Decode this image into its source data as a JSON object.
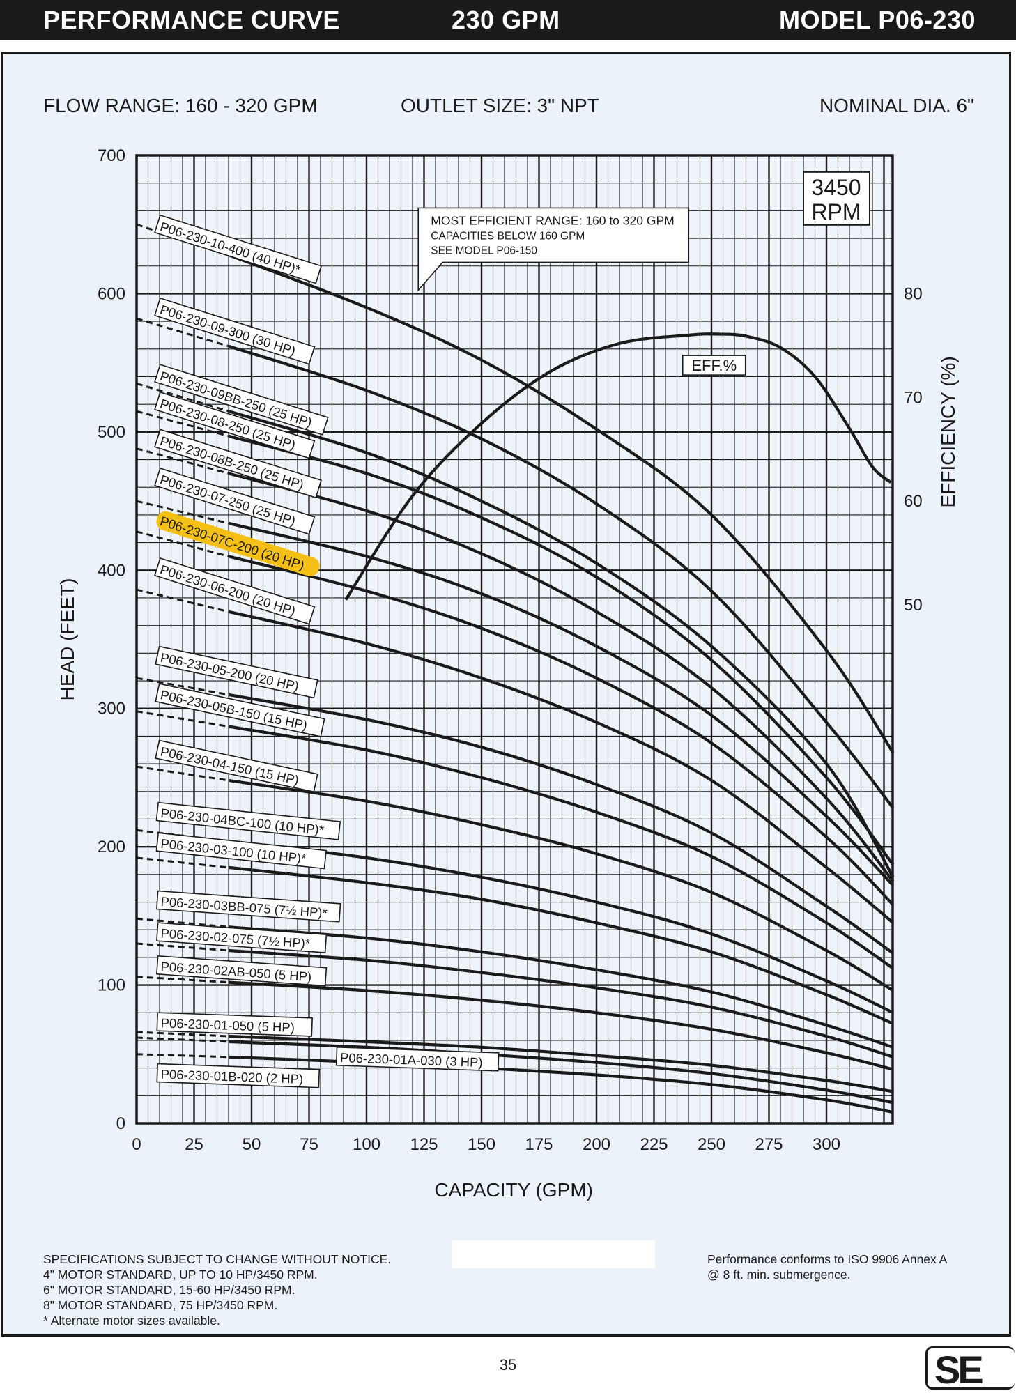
{
  "header": {
    "left": "PERFORMANCE CURVE",
    "middle": "230 GPM",
    "right": "MODEL  P06-230"
  },
  "specs": {
    "flow_range": "FLOW RANGE: 160 - 320 GPM",
    "outlet": "OUTLET SIZE: 3\" NPT",
    "nominal_dia": "NOMINAL DIA. 6\""
  },
  "chart_data": {
    "type": "line",
    "xlabel": "CAPACITY (GPM)",
    "ylabel": "HEAD (FEET)",
    "y2label": "EFFICIENCY (%)",
    "xlim": [
      0,
      329
    ],
    "ylim": [
      0,
      700
    ],
    "y2lim": [
      0,
      93.3
    ],
    "xticks": [
      0,
      25,
      50,
      75,
      100,
      125,
      150,
      175,
      200,
      225,
      250,
      275,
      300
    ],
    "yticks": [
      0,
      100,
      200,
      300,
      400,
      500,
      600,
      700
    ],
    "y2ticks": [
      50,
      60,
      70,
      80
    ],
    "grid": true,
    "rpm_box": [
      "3450",
      "RPM"
    ],
    "callout": [
      "MOST EFFICIENT RANGE: 160 to 320 GPM",
      "CAPACITIES BELOW 160 GPM",
      "SEE  MODEL P06-150"
    ],
    "efficiency": {
      "name": "EFF.%",
      "x": [
        91,
        120,
        150,
        180,
        210,
        240,
        253,
        265,
        280,
        295,
        310,
        320,
        328
      ],
      "y": [
        50.5,
        60.5,
        67.5,
        72.5,
        75.2,
        76,
        76.1,
        75.9,
        74.8,
        72,
        67,
        63.3,
        61.8
      ]
    },
    "highlight_color": "#f5c016",
    "series": [
      {
        "name": "P06-230-10-400 (40 HP)*",
        "label_x": 9,
        "label_y": 650,
        "label_angle": 17.5,
        "x": [
          0,
          40,
          100,
          150,
          200,
          250,
          300,
          329
        ],
        "y": [
          650,
          628,
          590,
          552,
          502,
          440,
          342,
          268
        ]
      },
      {
        "name": "P06-230-09-300 (30 HP)",
        "label_x": 9,
        "label_y": 590,
        "label_angle": 17.5,
        "x": [
          0,
          40,
          100,
          150,
          200,
          250,
          300,
          329
        ],
        "y": [
          582,
          562,
          530,
          495,
          448,
          385,
          290,
          228
        ]
      },
      {
        "name": "P06-230-09BB-250 (25 HP)",
        "label_x": 9,
        "label_y": 542,
        "label_angle": 17.5,
        "x": [
          0,
          40,
          100,
          150,
          200,
          250,
          300,
          329
        ],
        "y": [
          535,
          515,
          485,
          450,
          405,
          345,
          260,
          178
        ]
      },
      {
        "name": "P06-230-08-250 (25 HP)",
        "label_x": 9,
        "label_y": 522,
        "label_angle": 17.5,
        "x": [
          0,
          40,
          100,
          150,
          200,
          250,
          300,
          329
        ],
        "y": [
          515,
          497,
          470,
          438,
          395,
          335,
          250,
          187
        ]
      },
      {
        "name": "P06-230-08B-250 (25 HP)",
        "label_x": 9,
        "label_y": 495,
        "label_angle": 17.5,
        "x": [
          0,
          40,
          100,
          150,
          200,
          250,
          300,
          329
        ],
        "y": [
          488,
          470,
          443,
          412,
          370,
          315,
          235,
          175
        ]
      },
      {
        "name": "P06-230-07-250 (25 HP)",
        "label_x": 9,
        "label_y": 467,
        "label_angle": 17.5,
        "x": [
          0,
          40,
          100,
          150,
          200,
          250,
          300,
          329
        ],
        "y": [
          450,
          434,
          410,
          383,
          345,
          295,
          222,
          172
        ]
      },
      {
        "name": "P06-230-07C-200 (20 HP)",
        "label_x": 9,
        "label_y": 437,
        "label_angle": 17.5,
        "highlight": true,
        "x": [
          0,
          40,
          100,
          150,
          200,
          250,
          300,
          329
        ],
        "y": [
          428,
          410,
          385,
          358,
          322,
          275,
          207,
          158
        ]
      },
      {
        "name": "P06-230-06-200 (20 HP)",
        "label_x": 9,
        "label_y": 402,
        "label_angle": 17.5,
        "x": [
          0,
          40,
          100,
          150,
          200,
          250,
          300,
          329
        ],
        "y": [
          386,
          370,
          347,
          322,
          290,
          248,
          185,
          145
        ]
      },
      {
        "name": "P06-230-05-200 (20 HP)",
        "label_x": 9,
        "label_y": 338,
        "label_angle": 12,
        "x": [
          0,
          40,
          100,
          150,
          200,
          250,
          300,
          329
        ],
        "y": [
          322,
          310,
          292,
          272,
          245,
          210,
          157,
          123
        ]
      },
      {
        "name": "P06-230-05B-150 (15 HP)",
        "label_x": 9,
        "label_y": 311,
        "label_angle": 12,
        "x": [
          0,
          40,
          100,
          150,
          200,
          250,
          300,
          329
        ],
        "y": [
          298,
          287,
          270,
          250,
          225,
          193,
          145,
          112
        ]
      },
      {
        "name": "P06-230-04-150 (15 HP)",
        "label_x": 9,
        "label_y": 270,
        "label_angle": 12,
        "x": [
          0,
          40,
          100,
          150,
          200,
          250,
          300,
          329
        ],
        "y": [
          258,
          248,
          233,
          216,
          195,
          167,
          125,
          96
        ]
      },
      {
        "name": "P06-230-04BC-100 (10 HP)*",
        "label_x": 9,
        "label_y": 225,
        "label_angle": 6,
        "x": [
          0,
          40,
          100,
          150,
          200,
          250,
          300,
          329
        ],
        "y": [
          212,
          204,
          192,
          178,
          160,
          137,
          103,
          80
        ]
      },
      {
        "name": "P06-230-03-100 (10 HP)*",
        "label_x": 9,
        "label_y": 203,
        "label_angle": 6,
        "x": [
          0,
          40,
          100,
          150,
          200,
          250,
          300,
          329
        ],
        "y": [
          192,
          185,
          174,
          162,
          145,
          124,
          93,
          72
        ]
      },
      {
        "name": "P06-230-03BB-075 (7½ HP)*",
        "label_x": 9,
        "label_y": 161,
        "label_angle": 4,
        "x": [
          0,
          40,
          100,
          150,
          200,
          250,
          300,
          329
        ],
        "y": [
          148,
          142,
          134,
          124,
          111,
          95,
          71,
          55
        ]
      },
      {
        "name": "P06-230-02-075 (7½ HP)*",
        "label_x": 9,
        "label_y": 138,
        "label_angle": 4,
        "x": [
          0,
          40,
          100,
          150,
          200,
          250,
          300,
          329
        ],
        "y": [
          130,
          125,
          118,
          109,
          98,
          84,
          63,
          48
        ]
      },
      {
        "name": "P06-230-02AB-050 (5 HP)",
        "label_x": 9,
        "label_y": 114,
        "label_angle": 4,
        "x": [
          0,
          40,
          100,
          150,
          200,
          250,
          300,
          329
        ],
        "y": [
          106,
          102,
          96,
          89,
          80,
          68,
          51,
          39
        ]
      },
      {
        "name": "P06-230-01-050 (5 HP)",
        "label_x": 9,
        "label_y": 73,
        "label_angle": 2,
        "x": [
          0,
          40,
          100,
          150,
          200,
          250,
          300,
          329
        ],
        "y": [
          66,
          63,
          59,
          55,
          49,
          42,
          31,
          23
        ]
      },
      {
        "name": "P06-230-01A-030 (3 HP)",
        "label_x": 87,
        "label_y": 48,
        "label_angle": 2,
        "x": [
          0,
          40,
          100,
          150,
          200,
          250,
          300,
          329
        ],
        "y": [
          62,
          59,
          55,
          50,
          44,
          36,
          24,
          15
        ]
      },
      {
        "name": "P06-230-01B-020 (2 HP)",
        "label_x": 9,
        "label_y": 36,
        "label_angle": 2,
        "x": [
          0,
          40,
          100,
          150,
          200,
          250,
          300,
          329
        ],
        "y": [
          50,
          48,
          44,
          40,
          35,
          28,
          17,
          8
        ]
      }
    ]
  },
  "footer": {
    "notes": [
      "SPECIFICATIONS SUBJECT TO CHANGE WITHOUT NOTICE.",
      "4\" MOTOR STANDARD, UP TO 10 HP/3450 RPM.",
      "6\" MOTOR STANDARD, 15-60 HP/3450 RPM.",
      "8\" MOTOR STANDARD, 75 HP/3450 RPM.",
      "* Alternate motor sizes available."
    ],
    "iso": [
      "Performance conforms to ISO 9906 Annex A",
      "@ 8 ft. min. submergence."
    ],
    "page": "35",
    "logo": "SE"
  }
}
